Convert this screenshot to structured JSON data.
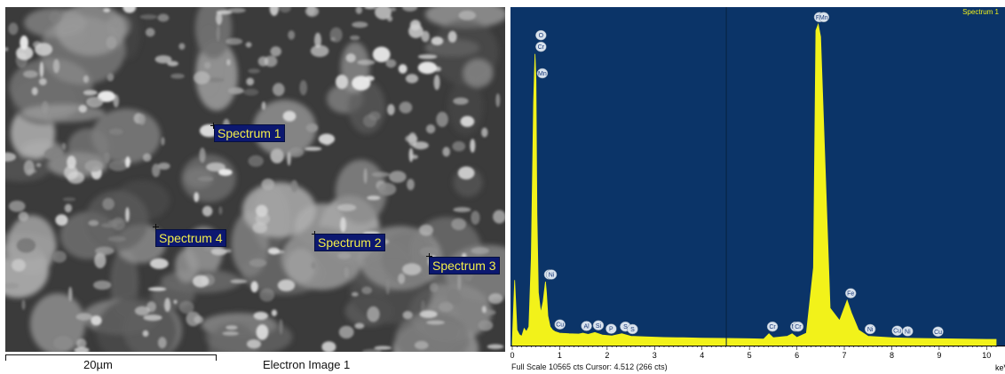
{
  "sem_view": {
    "spectrum_labels": [
      {
        "label": "Spectrum 1"
      },
      {
        "label": "Spectrum 2"
      },
      {
        "label": "Spectrum 3"
      },
      {
        "label": "Spectrum 4"
      }
    ],
    "scale_bar": "20µm",
    "image_title": "Electron Image 1"
  },
  "eds_spectrum": {
    "spectrum_name": "Spectrum 1",
    "footer": "Full Scale 10565 cts Cursor: 4.512  (266 cts)",
    "x_axis_unit": "keV",
    "x_ticks": [
      "0",
      "1",
      "2",
      "3",
      "4",
      "5",
      "6",
      "7",
      "8",
      "9",
      "10"
    ],
    "cursor_kev": 4.512,
    "colors": {
      "background": "#0b3468",
      "spectrum": "#f2f21a",
      "cursor": "#06223f",
      "label_bubble": "#d9e3ee"
    }
  },
  "chart_data": {
    "type": "line",
    "title": "Spectrum 1",
    "xlabel": "keV",
    "ylabel": "",
    "xlim": [
      0,
      10.2
    ],
    "ylim": [
      0,
      10565
    ],
    "series": [
      {
        "x": [
          0.0,
          0.05,
          0.1,
          0.15,
          0.2,
          0.25,
          0.3,
          0.35,
          0.4,
          0.45,
          0.48,
          0.5,
          0.52,
          0.55,
          0.6,
          0.65,
          0.7,
          0.72,
          0.75,
          0.8,
          0.85,
          0.9,
          1.0,
          1.2,
          1.4,
          1.49,
          1.6,
          1.74,
          1.9,
          2.1,
          2.31,
          2.5,
          2.8,
          3.2,
          3.6,
          4.0,
          4.5,
          5.0,
          5.3,
          5.41,
          5.5,
          5.8,
          5.9,
          6.0,
          6.2,
          6.35,
          6.4,
          6.45,
          6.5,
          6.7,
          6.9,
          7.06,
          7.15,
          7.3,
          7.5,
          8.0,
          8.5,
          9.0,
          9.5,
          10.0,
          10.2
        ],
        "y": [
          100,
          2100,
          500,
          350,
          300,
          550,
          450,
          600,
          2800,
          7800,
          9350,
          8500,
          4200,
          1700,
          1050,
          1400,
          2050,
          1700,
          950,
          600,
          500,
          450,
          400,
          380,
          370,
          400,
          360,
          420,
          340,
          310,
          380,
          300,
          280,
          260,
          250,
          240,
          230,
          220,
          210,
          380,
          250,
          300,
          380,
          260,
          400,
          2500,
          10100,
          10300,
          9900,
          1200,
          800,
          1450,
          1050,
          500,
          300,
          250,
          230,
          220,
          210,
          200,
          200
        ]
      }
    ],
    "peak_labels": [
      {
        "element": "O",
        "kev": 0.53
      },
      {
        "element": "Cr",
        "kev": 0.53
      },
      {
        "element": "Mn",
        "kev": 0.56
      },
      {
        "element": "Fe",
        "kev": 0.71
      },
      {
        "element": "Ni",
        "kev": 0.75
      },
      {
        "element": "Cu",
        "kev": 0.93
      },
      {
        "element": "Al",
        "kev": 1.49
      },
      {
        "element": "Si",
        "kev": 1.74
      },
      {
        "element": "P",
        "kev": 2.01
      },
      {
        "element": "S",
        "kev": 2.31
      },
      {
        "element": "S",
        "kev": 2.46
      },
      {
        "element": "Cr",
        "kev": 5.41
      },
      {
        "element": "Mn",
        "kev": 5.9
      },
      {
        "element": "Cr",
        "kev": 5.95
      },
      {
        "element": "Mn",
        "kev": 6.49
      },
      {
        "element": "Fe",
        "kev": 6.4
      },
      {
        "element": "Fe",
        "kev": 7.06
      },
      {
        "element": "Ni",
        "kev": 7.47
      },
      {
        "element": "Cu",
        "kev": 8.04
      },
      {
        "element": "Ni",
        "kev": 8.26
      },
      {
        "element": "Cu",
        "kev": 8.9
      }
    ]
  }
}
